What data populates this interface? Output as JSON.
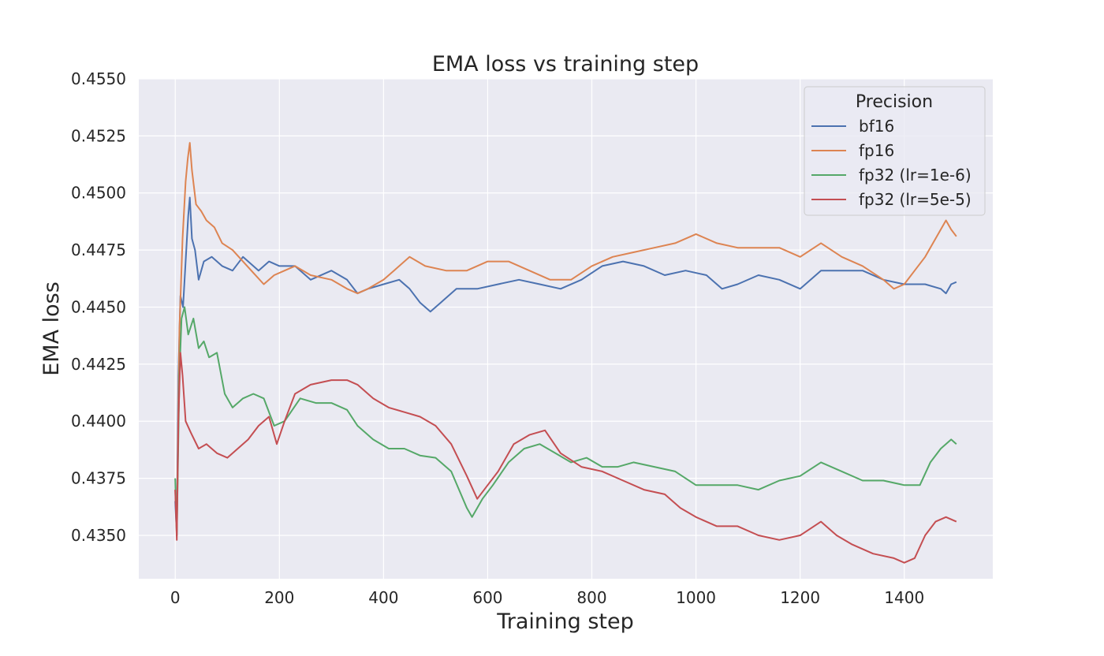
{
  "chart_data": {
    "type": "line",
    "title": "EMA loss vs training step",
    "xlabel": "Training step",
    "ylabel": "EMA loss",
    "xlim": [
      -70,
      1570
    ],
    "ylim": [
      0.4331,
      0.455
    ],
    "xticks": [
      "0",
      "200",
      "400",
      "600",
      "800",
      "1000",
      "1200",
      "1400"
    ],
    "yticks": [
      "0.4350",
      "0.4375",
      "0.4400",
      "0.4425",
      "0.4450",
      "0.4475",
      "0.4500",
      "0.4525",
      "0.4550"
    ],
    "grid": true,
    "legend": {
      "title": "Precision",
      "position": "top-right"
    },
    "series": [
      {
        "name": "bf16",
        "color": "#4c72b0",
        "points": [
          [
            0,
            0.4365
          ],
          [
            3,
            0.435
          ],
          [
            6,
            0.442
          ],
          [
            10,
            0.4455
          ],
          [
            15,
            0.445
          ],
          [
            20,
            0.447
          ],
          [
            25,
            0.449
          ],
          [
            28,
            0.4498
          ],
          [
            32,
            0.448
          ],
          [
            38,
            0.4475
          ],
          [
            45,
            0.4462
          ],
          [
            55,
            0.447
          ],
          [
            70,
            0.4472
          ],
          [
            90,
            0.4468
          ],
          [
            110,
            0.4466
          ],
          [
            130,
            0.4472
          ],
          [
            160,
            0.4466
          ],
          [
            180,
            0.447
          ],
          [
            200,
            0.4468
          ],
          [
            230,
            0.4468
          ],
          [
            260,
            0.4462
          ],
          [
            300,
            0.4466
          ],
          [
            330,
            0.4462
          ],
          [
            350,
            0.4456
          ],
          [
            370,
            0.4458
          ],
          [
            400,
            0.446
          ],
          [
            430,
            0.4462
          ],
          [
            450,
            0.4458
          ],
          [
            470,
            0.4452
          ],
          [
            490,
            0.4448
          ],
          [
            510,
            0.4452
          ],
          [
            540,
            0.4458
          ],
          [
            580,
            0.4458
          ],
          [
            620,
            0.446
          ],
          [
            660,
            0.4462
          ],
          [
            700,
            0.446
          ],
          [
            740,
            0.4458
          ],
          [
            780,
            0.4462
          ],
          [
            820,
            0.4468
          ],
          [
            860,
            0.447
          ],
          [
            900,
            0.4468
          ],
          [
            940,
            0.4464
          ],
          [
            980,
            0.4466
          ],
          [
            1020,
            0.4464
          ],
          [
            1050,
            0.4458
          ],
          [
            1080,
            0.446
          ],
          [
            1120,
            0.4464
          ],
          [
            1160,
            0.4462
          ],
          [
            1200,
            0.4458
          ],
          [
            1240,
            0.4466
          ],
          [
            1280,
            0.4466
          ],
          [
            1320,
            0.4466
          ],
          [
            1360,
            0.4462
          ],
          [
            1400,
            0.446
          ],
          [
            1440,
            0.446
          ],
          [
            1470,
            0.4458
          ],
          [
            1480,
            0.4456
          ],
          [
            1490,
            0.446
          ],
          [
            1500,
            0.4461
          ]
        ]
      },
      {
        "name": "fp16",
        "color": "#dd8452",
        "points": [
          [
            0,
            0.437
          ],
          [
            3,
            0.4352
          ],
          [
            8,
            0.444
          ],
          [
            14,
            0.448
          ],
          [
            20,
            0.4505
          ],
          [
            24,
            0.4515
          ],
          [
            28,
            0.4522
          ],
          [
            32,
            0.451
          ],
          [
            40,
            0.4495
          ],
          [
            50,
            0.4492
          ],
          [
            60,
            0.4488
          ],
          [
            75,
            0.4485
          ],
          [
            90,
            0.4478
          ],
          [
            110,
            0.4475
          ],
          [
            130,
            0.447
          ],
          [
            150,
            0.4465
          ],
          [
            170,
            0.446
          ],
          [
            190,
            0.4464
          ],
          [
            210,
            0.4466
          ],
          [
            230,
            0.4468
          ],
          [
            260,
            0.4464
          ],
          [
            300,
            0.4462
          ],
          [
            330,
            0.4458
          ],
          [
            350,
            0.4456
          ],
          [
            370,
            0.4458
          ],
          [
            400,
            0.4462
          ],
          [
            420,
            0.4466
          ],
          [
            450,
            0.4472
          ],
          [
            480,
            0.4468
          ],
          [
            520,
            0.4466
          ],
          [
            560,
            0.4466
          ],
          [
            600,
            0.447
          ],
          [
            640,
            0.447
          ],
          [
            680,
            0.4466
          ],
          [
            720,
            0.4462
          ],
          [
            760,
            0.4462
          ],
          [
            800,
            0.4468
          ],
          [
            840,
            0.4472
          ],
          [
            880,
            0.4474
          ],
          [
            920,
            0.4476
          ],
          [
            960,
            0.4478
          ],
          [
            1000,
            0.4482
          ],
          [
            1040,
            0.4478
          ],
          [
            1080,
            0.4476
          ],
          [
            1120,
            0.4476
          ],
          [
            1160,
            0.4476
          ],
          [
            1200,
            0.4472
          ],
          [
            1240,
            0.4478
          ],
          [
            1280,
            0.4472
          ],
          [
            1320,
            0.4468
          ],
          [
            1360,
            0.4462
          ],
          [
            1380,
            0.4458
          ],
          [
            1400,
            0.446
          ],
          [
            1420,
            0.4466
          ],
          [
            1440,
            0.4472
          ],
          [
            1460,
            0.448
          ],
          [
            1480,
            0.4488
          ],
          [
            1490,
            0.4484
          ],
          [
            1500,
            0.4481
          ]
        ]
      },
      {
        "name": "fp32 (lr=1e-6)",
        "color": "#55a868",
        "points": [
          [
            0,
            0.4375
          ],
          [
            3,
            0.435
          ],
          [
            8,
            0.442
          ],
          [
            12,
            0.4445
          ],
          [
            18,
            0.445
          ],
          [
            25,
            0.4438
          ],
          [
            35,
            0.4445
          ],
          [
            45,
            0.4432
          ],
          [
            55,
            0.4435
          ],
          [
            65,
            0.4428
          ],
          [
            80,
            0.443
          ],
          [
            95,
            0.4412
          ],
          [
            110,
            0.4406
          ],
          [
            130,
            0.441
          ],
          [
            150,
            0.4412
          ],
          [
            170,
            0.441
          ],
          [
            190,
            0.4398
          ],
          [
            210,
            0.44
          ],
          [
            240,
            0.441
          ],
          [
            270,
            0.4408
          ],
          [
            300,
            0.4408
          ],
          [
            330,
            0.4405
          ],
          [
            350,
            0.4398
          ],
          [
            380,
            0.4392
          ],
          [
            410,
            0.4388
          ],
          [
            440,
            0.4388
          ],
          [
            470,
            0.4385
          ],
          [
            500,
            0.4384
          ],
          [
            530,
            0.4378
          ],
          [
            560,
            0.4362
          ],
          [
            570,
            0.4358
          ],
          [
            590,
            0.4366
          ],
          [
            610,
            0.4372
          ],
          [
            640,
            0.4382
          ],
          [
            670,
            0.4388
          ],
          [
            700,
            0.439
          ],
          [
            730,
            0.4386
          ],
          [
            760,
            0.4382
          ],
          [
            790,
            0.4384
          ],
          [
            820,
            0.438
          ],
          [
            850,
            0.438
          ],
          [
            880,
            0.4382
          ],
          [
            920,
            0.438
          ],
          [
            960,
            0.4378
          ],
          [
            1000,
            0.4372
          ],
          [
            1040,
            0.4372
          ],
          [
            1080,
            0.4372
          ],
          [
            1120,
            0.437
          ],
          [
            1160,
            0.4374
          ],
          [
            1200,
            0.4376
          ],
          [
            1240,
            0.4382
          ],
          [
            1280,
            0.4378
          ],
          [
            1320,
            0.4374
          ],
          [
            1360,
            0.4374
          ],
          [
            1400,
            0.4372
          ],
          [
            1430,
            0.4372
          ],
          [
            1450,
            0.4382
          ],
          [
            1470,
            0.4388
          ],
          [
            1490,
            0.4392
          ],
          [
            1500,
            0.439
          ]
        ]
      },
      {
        "name": "fp32 (lr=5e-5)",
        "color": "#c44e52",
        "points": [
          [
            0,
            0.437
          ],
          [
            3,
            0.4348
          ],
          [
            6,
            0.44
          ],
          [
            10,
            0.443
          ],
          [
            14,
            0.442
          ],
          [
            20,
            0.44
          ],
          [
            30,
            0.4395
          ],
          [
            45,
            0.4388
          ],
          [
            60,
            0.439
          ],
          [
            80,
            0.4386
          ],
          [
            100,
            0.4384
          ],
          [
            120,
            0.4388
          ],
          [
            140,
            0.4392
          ],
          [
            160,
            0.4398
          ],
          [
            180,
            0.4402
          ],
          [
            195,
            0.439
          ],
          [
            210,
            0.44
          ],
          [
            230,
            0.4412
          ],
          [
            260,
            0.4416
          ],
          [
            300,
            0.4418
          ],
          [
            330,
            0.4418
          ],
          [
            350,
            0.4416
          ],
          [
            380,
            0.441
          ],
          [
            410,
            0.4406
          ],
          [
            440,
            0.4404
          ],
          [
            470,
            0.4402
          ],
          [
            500,
            0.4398
          ],
          [
            530,
            0.439
          ],
          [
            560,
            0.4376
          ],
          [
            580,
            0.4366
          ],
          [
            600,
            0.4372
          ],
          [
            620,
            0.4378
          ],
          [
            650,
            0.439
          ],
          [
            680,
            0.4394
          ],
          [
            710,
            0.4396
          ],
          [
            740,
            0.4386
          ],
          [
            780,
            0.438
          ],
          [
            820,
            0.4378
          ],
          [
            860,
            0.4374
          ],
          [
            900,
            0.437
          ],
          [
            940,
            0.4368
          ],
          [
            970,
            0.4362
          ],
          [
            1000,
            0.4358
          ],
          [
            1040,
            0.4354
          ],
          [
            1080,
            0.4354
          ],
          [
            1120,
            0.435
          ],
          [
            1160,
            0.4348
          ],
          [
            1200,
            0.435
          ],
          [
            1240,
            0.4356
          ],
          [
            1270,
            0.435
          ],
          [
            1300,
            0.4346
          ],
          [
            1340,
            0.4342
          ],
          [
            1380,
            0.434
          ],
          [
            1400,
            0.4338
          ],
          [
            1420,
            0.434
          ],
          [
            1440,
            0.435
          ],
          [
            1460,
            0.4356
          ],
          [
            1480,
            0.4358
          ],
          [
            1500,
            0.4356
          ]
        ]
      }
    ]
  }
}
